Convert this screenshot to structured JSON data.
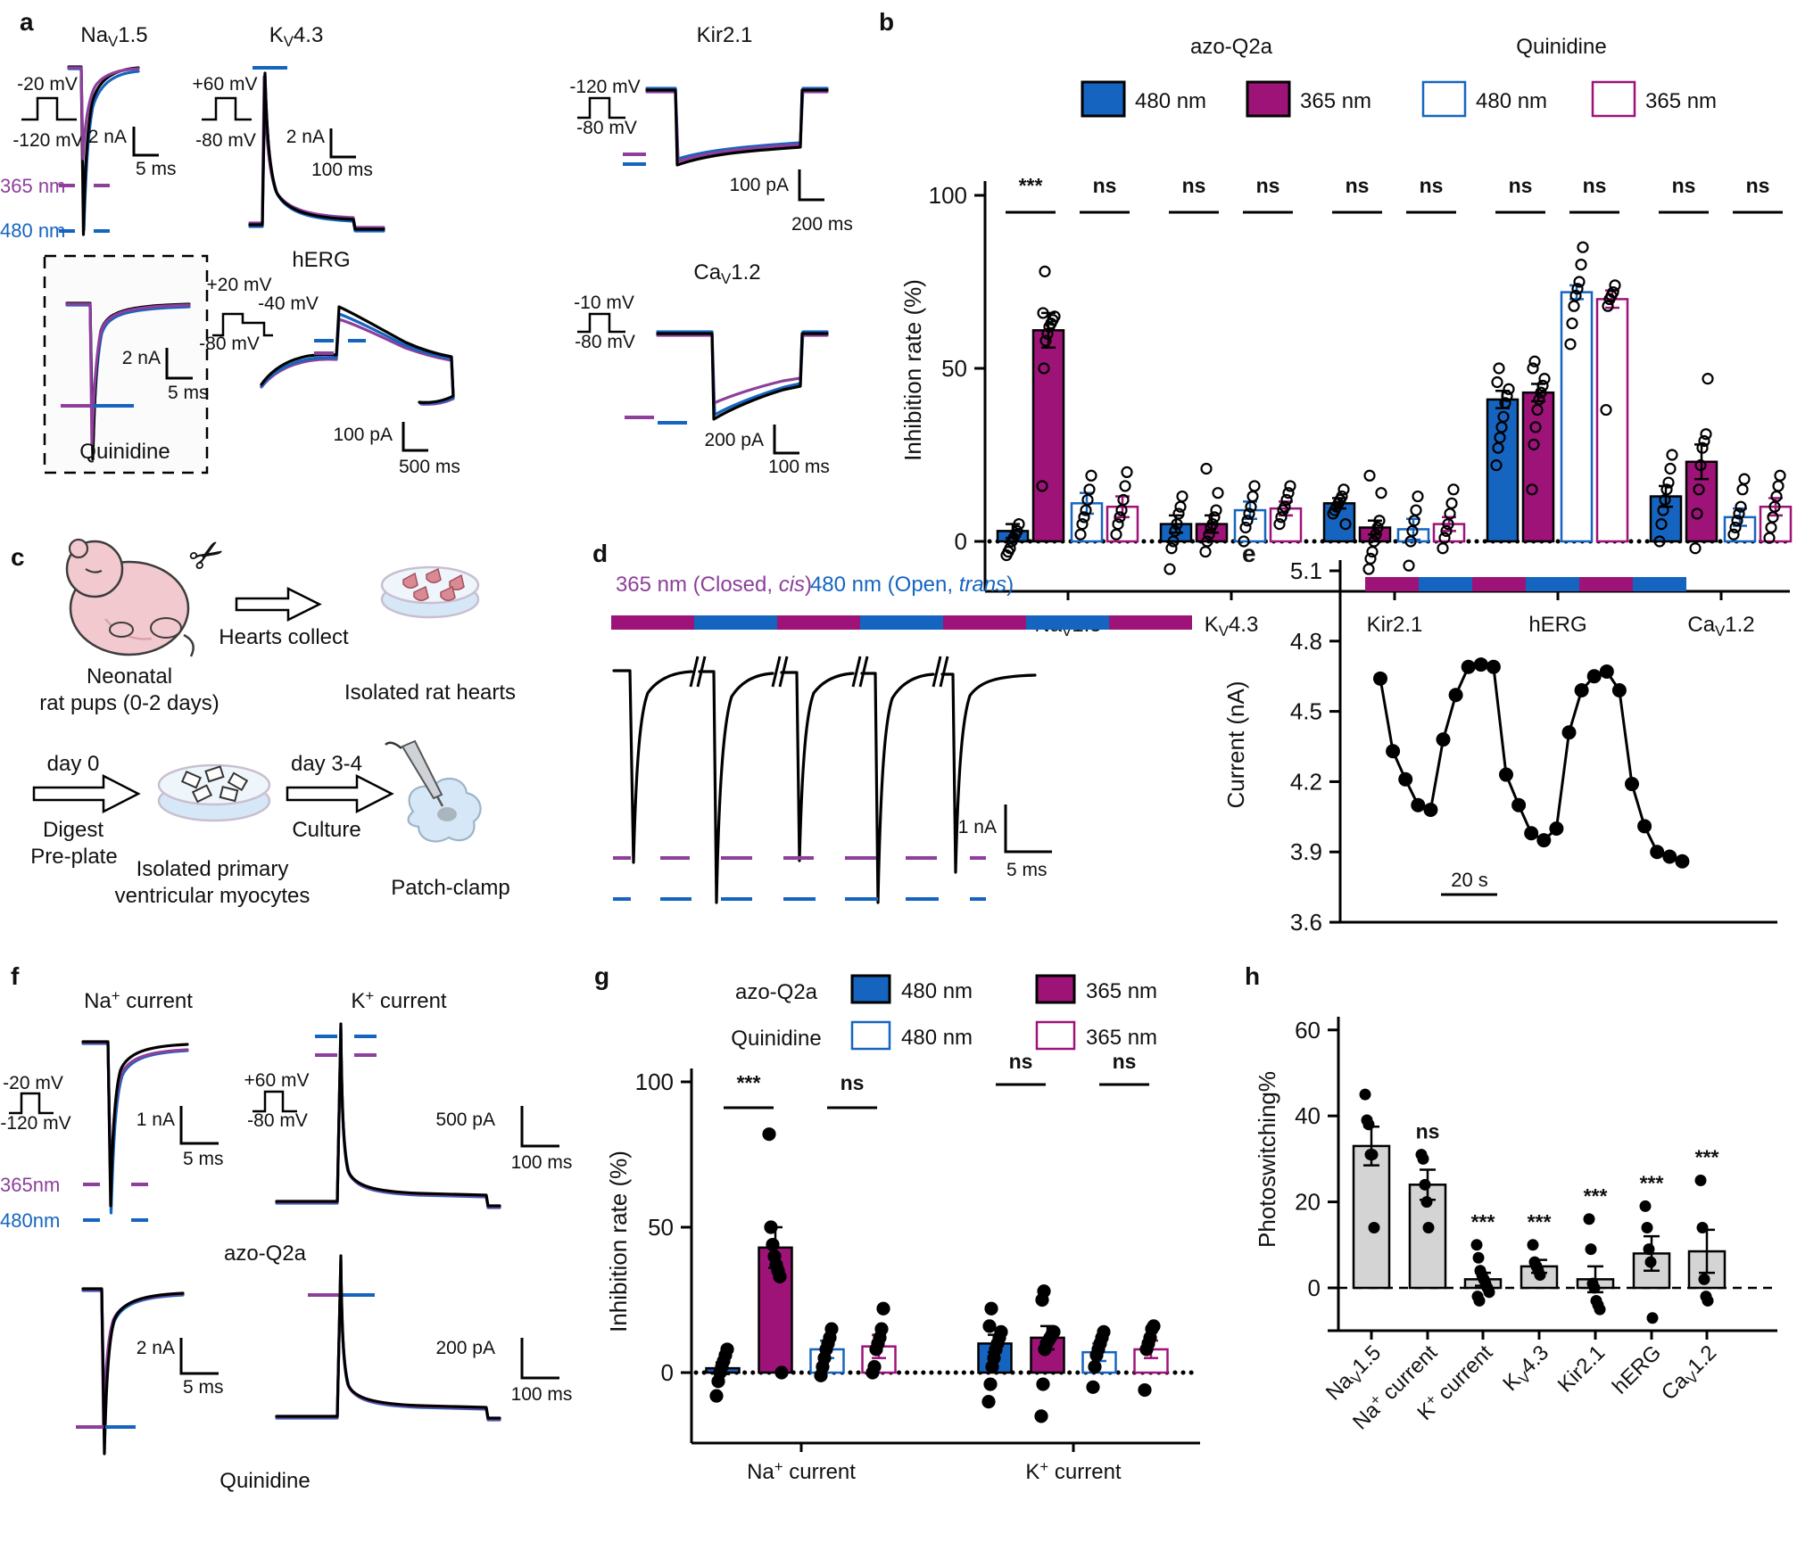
{
  "colors": {
    "blue": "#1565c0",
    "magenta": "#9e1378",
    "purple": "#8d3f9b",
    "gray_bar": "#d4d4d4",
    "dish_fill": "#d6e8f7",
    "dish_top": "#eef6fc",
    "dish_rim": "#c9bfd0",
    "heart": "#d98a94",
    "rat": "#f2c9cf"
  },
  "panel_a": {
    "label": "a",
    "nav15": {
      "title": "Na_V1.5",
      "prot_top": "-20 mV",
      "prot_bot": "-120 mV",
      "scale_v": "2 nA",
      "scale_h": "5 ms",
      "light_uv": "365 nm",
      "light_blue": "480 nm"
    },
    "quinidine": {
      "label": "Quinidine",
      "scale_v": "2 nA",
      "scale_h": "5 ms"
    },
    "kv43": {
      "title": "K_V4.3",
      "prot_top": "+60 mV",
      "prot_bot": "-80 mV",
      "scale_v": "2 nA",
      "scale_h": "100 ms"
    },
    "herg": {
      "title": "hERG",
      "prot_top": "+20 mV",
      "prot_mid": "-40 mV",
      "prot_bot": "-80 mV",
      "scale_v": "100 pA",
      "scale_h": "500 ms"
    },
    "kir21": {
      "title": "Kir2.1",
      "prot_top": "-120 mV",
      "prot_bot": "-80 mV",
      "scale_v": "100 pA",
      "scale_h": "200 ms"
    },
    "cav12": {
      "title": "Ca_V1.2",
      "prot_top": "-10 mV",
      "prot_bot": "-80 mV",
      "scale_v": "200 pA",
      "scale_h": "100 ms"
    }
  },
  "panel_b": {
    "label": "b",
    "group_azo": "azo-Q2a",
    "group_qui": "Quinidine",
    "legend": [
      "480 nm",
      "365 nm",
      "480 nm",
      "365 nm"
    ]
  },
  "panel_c": {
    "label": "c",
    "step1": "Hearts collect",
    "source_line1": "Neonatal",
    "source_line2": "rat pups (0-2 days)",
    "dish1": "Isolated rat hearts",
    "day0": "day 0",
    "digest1": "Digest",
    "digest2": "Pre-plate",
    "dish2_line1": "Isolated primary",
    "dish2_line2": "ventricular myocytes",
    "day34": "day 3-4",
    "culture": "Culture",
    "patch": "Patch-clamp"
  },
  "panel_d": {
    "label": "d",
    "light_uv": {
      "pre": "365 nm (Closed, ",
      "it": "cis",
      "post": ")"
    },
    "light_blue": {
      "pre": "480 nm (Open, ",
      "it": "trans",
      "post": ")"
    },
    "light_sequence": [
      "365",
      "480",
      "365",
      "480",
      "365",
      "480",
      "365"
    ],
    "scale_v": "1 nA",
    "scale_h": "5 ms"
  },
  "panel_e": {
    "label": "e"
  },
  "panel_f": {
    "label": "f",
    "title_na": "Na^+ current",
    "title_k": "K^+ current",
    "prot_na_top": "-20 mV",
    "prot_na_bot": "-120 mV",
    "prot_k_top": "+60 mV",
    "prot_k_bot": "-80 mV",
    "scale1_v": "1 nA",
    "scale1_h": "5 ms",
    "scale2_v": "500 pA",
    "scale2_h": "100 ms",
    "scale3_v": "2 nA",
    "scale3_h": "5 ms",
    "scale4_v": "200 pA",
    "scale4_h": "100 ms",
    "light_uv": "365nm",
    "light_blue": "480nm",
    "mid": "azo-Q2a",
    "bottom": "Quinidine"
  },
  "panel_g": {
    "label": "g",
    "row1": "azo-Q2a",
    "row2": "Quinidine",
    "legend": [
      "480 nm",
      "365 nm",
      "480 nm",
      "365 nm"
    ]
  },
  "panel_h": {
    "label": "h"
  },
  "chart_data": [
    {
      "id": "b",
      "type": "bar",
      "ylabel": "Inhibition rate (%)",
      "yticks": [
        0,
        50,
        100
      ],
      "categories": [
        "Na_V1.5",
        "K_V4.3",
        "Kir2.1",
        "hERG",
        "Ca_V1.2"
      ],
      "series": [
        {
          "name": "azo-Q2a 480 nm",
          "style": "blue-filled",
          "values": [
            3,
            5,
            11,
            41,
            13
          ],
          "errors": [
            2,
            2.5,
            1.5,
            2.5,
            3
          ],
          "points": [
            [
              -4,
              -3,
              -2,
              0,
              1,
              2,
              3,
              5
            ],
            [
              -8,
              -2,
              0,
              3,
              5,
              8,
              10,
              13
            ],
            [
              8,
              9,
              10,
              11,
              12,
              13,
              15,
              5
            ],
            [
              22,
              27,
              30,
              33,
              36,
              40,
              42,
              44,
              46,
              50
            ],
            [
              0,
              5,
              9,
              12,
              15,
              17,
              21,
              25
            ]
          ]
        },
        {
          "name": "azo-Q2a 365 nm",
          "style": "magenta-filled",
          "values": [
            61,
            5,
            4,
            43,
            23
          ],
          "errors": [
            5,
            2.5,
            2,
            2.5,
            5
          ],
          "points": [
            [
              16,
              50,
              58,
              60,
              62,
              63,
              64,
              65,
              66,
              78
            ],
            [
              -3,
              0,
              2,
              4,
              5,
              7,
              9,
              14,
              21
            ],
            [
              -8,
              -5,
              -3,
              0,
              2,
              4,
              6,
              14,
              19
            ],
            [
              15,
              28,
              33,
              38,
              41,
              43,
              45,
              47,
              50,
              52
            ],
            [
              -2,
              8,
              15,
              22,
              27,
              29,
              31,
              47
            ]
          ]
        },
        {
          "name": "Quinidine 480 nm",
          "style": "blue-open",
          "values": [
            11,
            9,
            3.5,
            72,
            7
          ],
          "errors": [
            3,
            2.5,
            3,
            2,
            2.5
          ],
          "points": [
            [
              2,
              5,
              7,
              9,
              12,
              15,
              19
            ],
            [
              0,
              4,
              6,
              8,
              10,
              13,
              16
            ],
            [
              -13,
              -7,
              0,
              3,
              6,
              9,
              13
            ],
            [
              57,
              63,
              68,
              71,
              73,
              75,
              80,
              85
            ],
            [
              2,
              4,
              6,
              8,
              10,
              15,
              18
            ]
          ]
        },
        {
          "name": "Quinidine 365 nm",
          "style": "magenta-open",
          "values": [
            10,
            9.5,
            5,
            70,
            10
          ],
          "errors": [
            3,
            2,
            2,
            2.5,
            2.5
          ],
          "points": [
            [
              2,
              5,
              7,
              9,
              12,
              16,
              20
            ],
            [
              5,
              7,
              9,
              10,
              12,
              14,
              16
            ],
            [
              -2,
              1,
              3,
              5,
              8,
              11,
              15
            ],
            [
              38,
              68,
              70,
              71,
              72,
              74
            ],
            [
              1,
              4,
              7,
              10,
              13,
              16,
              19
            ]
          ]
        }
      ],
      "significance": [
        [
          "***",
          "ns"
        ],
        [
          "ns",
          "ns"
        ],
        [
          "ns",
          "ns"
        ],
        [
          "ns",
          "ns"
        ],
        [
          "ns",
          "ns"
        ]
      ]
    },
    {
      "id": "e",
      "type": "line",
      "ylabel": "Current (nA)",
      "yticks": [
        5.1,
        4.8,
        4.5,
        4.2,
        3.9,
        3.6
      ],
      "scalebar": "20 s",
      "light_sequence": [
        "365",
        "480",
        "365",
        "480",
        "365",
        "480"
      ],
      "values": [
        4.64,
        4.33,
        4.21,
        4.1,
        4.08,
        4.38,
        4.57,
        4.69,
        4.7,
        4.69,
        4.23,
        4.1,
        3.98,
        3.95,
        4.0,
        4.41,
        4.59,
        4.65,
        4.67,
        4.59,
        4.19,
        4.01,
        3.9,
        3.88,
        3.86
      ]
    },
    {
      "id": "g",
      "type": "bar",
      "ylabel": "Inhibition rate (%)",
      "yticks": [
        0,
        50,
        100
      ],
      "categories": [
        "Na^+ current",
        "K^+ current"
      ],
      "series": [
        {
          "name": "azo-Q2a 480 nm",
          "style": "blue-filled",
          "values": [
            1.5,
            10
          ],
          "errors": [
            2,
            3
          ],
          "points": [
            [
              -8,
              -3,
              0,
              2,
              4,
              6,
              8
            ],
            [
              -10,
              -4,
              2,
              5,
              8,
              10,
              12,
              14,
              16,
              22
            ]
          ]
        },
        {
          "name": "azo-Q2a 365 nm",
          "style": "magenta-filled",
          "values": [
            43,
            12
          ],
          "errors": [
            7,
            4
          ],
          "points": [
            [
              82,
              50,
              44,
              40,
              37,
              35,
              33,
              0
            ],
            [
              -15,
              -4,
              8,
              10,
              11,
              12,
              13,
              14,
              25,
              28
            ]
          ]
        },
        {
          "name": "Quinidine 480 nm",
          "style": "blue-open",
          "values": [
            8,
            7
          ],
          "errors": [
            3,
            3
          ],
          "points": [
            [
              -1,
              2,
              5,
              8,
              10,
              12,
              15
            ],
            [
              -5,
              2,
              6,
              8,
              10,
              12,
              14
            ]
          ]
        },
        {
          "name": "Quinidine 365 nm",
          "style": "magenta-open",
          "values": [
            9,
            8
          ],
          "errors": [
            4,
            3
          ],
          "points": [
            [
              0,
              2,
              8,
              10,
              12,
              15,
              22
            ],
            [
              -6,
              8,
              10,
              12,
              15,
              16
            ]
          ]
        }
      ],
      "significance": [
        [
          "***",
          "ns"
        ],
        [
          "ns",
          "ns"
        ]
      ]
    },
    {
      "id": "h",
      "type": "bar",
      "ylabel": "Photoswitching%",
      "yticks": [
        0,
        20,
        40,
        60
      ],
      "categories": [
        "Na_V1.5",
        "Na^+ current",
        "K^+ current",
        "K_V4.3",
        "Kir2.1",
        "hERG",
        "Ca_V1.2"
      ],
      "values": [
        33,
        24,
        2,
        5,
        2,
        8,
        8.5
      ],
      "errors": [
        4.5,
        3.5,
        1.5,
        1.5,
        3,
        4,
        5
      ],
      "significance": [
        "",
        "ns",
        "***",
        "***",
        "***",
        "***",
        "***"
      ],
      "points": [
        [
          45,
          39,
          38,
          31,
          31,
          14
        ],
        [
          31,
          30,
          24,
          20,
          14
        ],
        [
          10,
          7,
          4,
          3,
          2,
          1,
          0,
          -1,
          -2,
          -3
        ],
        [
          10,
          6,
          5,
          4,
          3
        ],
        [
          16,
          9,
          1,
          0,
          -3,
          -4,
          -5
        ],
        [
          19,
          14,
          9,
          6,
          -7
        ],
        [
          25,
          14,
          2,
          -2,
          -3
        ]
      ]
    }
  ]
}
